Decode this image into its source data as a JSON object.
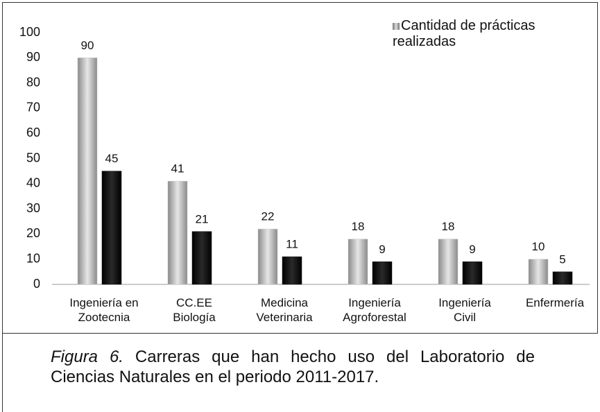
{
  "chart_data": {
    "type": "bar",
    "categories": [
      "Ingeniería en\nZootecnia",
      "CC.EE\nBiología",
      "Medicina\nVeterinaria",
      "Ingeniería\nAgroforestal",
      "Ingeniería\nCivil",
      "Enfermería"
    ],
    "series": [
      {
        "name": "Cantidad de prácticas realizadas",
        "color": "#c8c8c8",
        "values": [
          90,
          41,
          22,
          18,
          18,
          10
        ]
      },
      {
        "color": "#111111",
        "values": [
          45,
          21,
          11,
          9,
          9,
          5
        ]
      }
    ],
    "ylim": [
      0,
      100
    ],
    "yticks": [
      0,
      10,
      20,
      30,
      40,
      50,
      60,
      70,
      80,
      90,
      100
    ],
    "grid": false,
    "legend": "top-right"
  },
  "caption": {
    "label": "Figura 6.",
    "text": "Carreras que han hecho uso del Laboratorio de Ciencias Naturales en el periodo 2011-2017."
  }
}
